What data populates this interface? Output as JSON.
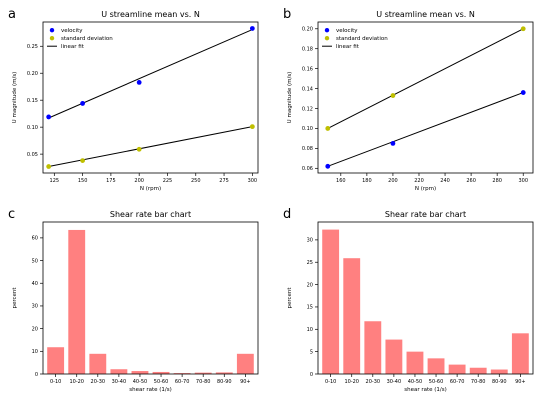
{
  "chart_data": [
    {
      "panel": "a",
      "type": "scatter",
      "title": "U streamline mean vs. N",
      "xlabel": "N (rpm)",
      "ylabel": "U magnitude (m/s)",
      "xlim": [
        115,
        305
      ],
      "ylim": [
        0.015,
        0.295
      ],
      "xticks": [
        125,
        150,
        175,
        200,
        225,
        250,
        275,
        300
      ],
      "yticks": [
        0.05,
        0.1,
        0.15,
        0.2,
        0.25
      ],
      "legend_position": "top-left",
      "legend": [
        "velocity",
        "standard deviation",
        "linear fit"
      ],
      "series": [
        {
          "name": "velocity",
          "marker_color": "#0000ff",
          "x": [
            120,
            150,
            200,
            300
          ],
          "y": [
            0.119,
            0.144,
            0.183,
            0.283
          ]
        },
        {
          "name": "standard deviation",
          "marker_color": "#bfbf00",
          "x": [
            120,
            150,
            200,
            300
          ],
          "y": [
            0.027,
            0.038,
            0.059,
            0.101
          ]
        }
      ],
      "fits": [
        {
          "x": [
            120,
            300
          ],
          "y": [
            0.117,
            0.281
          ]
        },
        {
          "x": [
            120,
            300
          ],
          "y": [
            0.027,
            0.101
          ]
        }
      ]
    },
    {
      "panel": "b",
      "type": "scatter",
      "title": "U streamline mean vs. N",
      "xlabel": "N (rpm)",
      "ylabel": "U magnitude (m/s)",
      "xlim": [
        142.5,
        307.5
      ],
      "ylim": [
        0.0553,
        0.2068
      ],
      "xticks": [
        160,
        180,
        200,
        220,
        240,
        260,
        280,
        300
      ],
      "yticks": [
        0.06,
        0.08,
        0.1,
        0.12,
        0.14,
        0.16,
        0.18,
        0.2
      ],
      "legend_position": "top-left",
      "legend": [
        "velocity",
        "standard deviation",
        "linear fit"
      ],
      "series": [
        {
          "name": "velocity",
          "marker_color": "#0000ff",
          "x": [
            150,
            200,
            300
          ],
          "y": [
            0.062,
            0.085,
            0.136
          ]
        },
        {
          "name": "standard deviation",
          "marker_color": "#bfbf00",
          "x": [
            150,
            200,
            300
          ],
          "y": [
            0.1,
            0.133,
            0.2
          ]
        }
      ],
      "fits": [
        {
          "x": [
            150,
            300
          ],
          "y": [
            0.062,
            0.136
          ]
        },
        {
          "x": [
            150,
            300
          ],
          "y": [
            0.1,
            0.2
          ]
        }
      ]
    },
    {
      "panel": "c",
      "type": "bar",
      "title": "Shear rate bar chart",
      "xlabel": "shear rate (1/s)",
      "ylabel": "percent",
      "bar_color": "#ff8080",
      "categories": [
        "0-10",
        "10-20",
        "20-30",
        "30-40",
        "40-50",
        "50-60",
        "60-70",
        "70-80",
        "80-90",
        "90+"
      ],
      "values": [
        11.8,
        63.5,
        8.9,
        2.1,
        1.3,
        0.9,
        0.4,
        0.6,
        0.7,
        8.9
      ],
      "ylim": [
        0,
        67
      ],
      "yticks": [
        0,
        10,
        20,
        30,
        40,
        50,
        60
      ]
    },
    {
      "panel": "d",
      "type": "bar",
      "title": "Shear rate bar chart",
      "xlabel": "shear rate (1/s)",
      "ylabel": "percent",
      "bar_color": "#ff8080",
      "categories": [
        "0-10",
        "10-20",
        "20-30",
        "30-40",
        "40-50",
        "50-60",
        "60-70",
        "70-80",
        "80-90",
        "90+"
      ],
      "values": [
        32.3,
        25.9,
        11.8,
        7.7,
        5.0,
        3.5,
        2.1,
        1.4,
        1.0,
        9.1
      ],
      "ylim": [
        0,
        34
      ],
      "yticks": [
        0,
        5,
        10,
        15,
        20,
        25,
        30
      ]
    }
  ]
}
